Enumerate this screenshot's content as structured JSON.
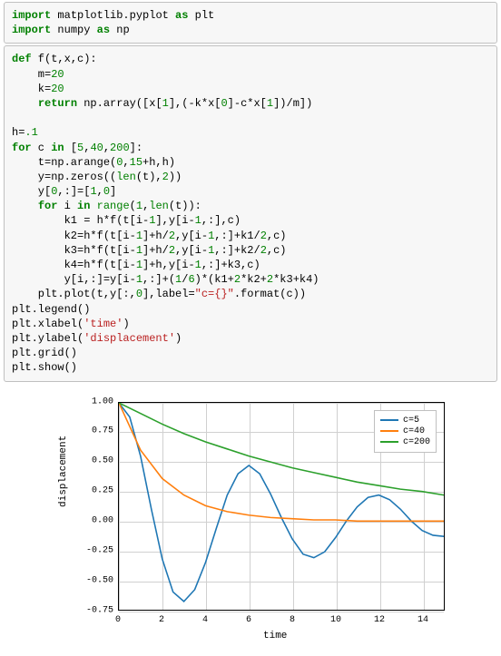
{
  "cell1": {
    "l1a": "import",
    "l1b": " matplotlib.pyplot ",
    "l1c": "as",
    "l1d": " plt",
    "l2a": "import",
    "l2b": " numpy ",
    "l2c": "as",
    "l2d": " np"
  },
  "cell2": {
    "l1a": "def",
    "l1b": " f(t,x,c):",
    "l2": "    m=",
    "l2n": "20",
    "l3": "    k=",
    "l3n": "20",
    "l4a": "    ",
    "l4b": "return",
    "l4c": " np.array([x[",
    "l4n1": "1",
    "l4d": "],(-k*x[",
    "l4n2": "0",
    "l4e": "]-c*x[",
    "l4n3": "1",
    "l4f": "])/m])",
    "l6a": "h=",
    "l6n": ".1",
    "l7a": "for",
    "l7b": " c ",
    "l7c": "in",
    "l7d": " [",
    "l7n1": "5",
    "l7e": ",",
    "l7n2": "40",
    "l7f": ",",
    "l7n3": "200",
    "l7g": "]:",
    "l8": "    t=np.arange(",
    "l8n1": "0",
    "l8a": ",",
    "l8n2": "15",
    "l8b": "+h,h)",
    "l9": "    y=np.zeros((",
    "l9a": "len",
    "l9b": "(t),",
    "l9n": "2",
    "l9c": "))",
    "l10": "    y[",
    "l10n1": "0",
    "l10a": ",:]=[",
    "l10n2": "1",
    "l10b": ",",
    "l10n3": "0",
    "l10c": "]",
    "l11a": "    ",
    "l11b": "for",
    "l11c": " i ",
    "l11d": "in",
    "l11e": " ",
    "l11f": "range",
    "l11g": "(",
    "l11n": "1",
    "l11h": ",",
    "l11i": "len",
    "l11j": "(t)):",
    "l12": "        k1 = h*f(t[i-",
    "l12n": "1",
    "l12a": "],y[i-",
    "l12n2": "1",
    "l12b": ",:],c)",
    "l13": "        k2=h*f(t[i-",
    "l13n": "1",
    "l13a": "]+h/",
    "l13n2": "2",
    "l13b": ",y[i-",
    "l13n3": "1",
    "l13c": ",:]+k1/",
    "l13n4": "2",
    "l13d": ",c)",
    "l14": "        k3=h*f(t[i-",
    "l14n": "1",
    "l14a": "]+h/",
    "l14n2": "2",
    "l14b": ",y[i-",
    "l14n3": "1",
    "l14c": ",:]+k2/",
    "l14n4": "2",
    "l14d": ",c)",
    "l15": "        k4=h*f(t[i-",
    "l15n": "1",
    "l15a": "]+h,y[i-",
    "l15n2": "1",
    "l15b": ",:]+k3,c)",
    "l16": "        y[i,:]=y[i-",
    "l16n": "1",
    "l16a": ",:]+(",
    "l16n2": "1",
    "l16b": "/",
    "l16n3": "6",
    "l16c": ")*(k1+",
    "l16n4": "2",
    "l16d": "*k2+",
    "l16n5": "2",
    "l16e": "*k3+k4)",
    "l17": "    plt.plot(t,y[:,",
    "l17n": "0",
    "l17a": "],label=",
    "l17s": "\"c={}\"",
    "l17b": ".format(c))",
    "l18": "plt.legend()",
    "l19": "plt.xlabel(",
    "l19s": "'time'",
    "l19a": ")",
    "l20": "plt.ylabel(",
    "l20s": "'displacement'",
    "l20a": ")",
    "l21": "plt.grid()",
    "l22": "plt.show()"
  },
  "chart": {
    "type": "line",
    "xlim": [
      0,
      15
    ],
    "ylim": [
      -0.75,
      1.0
    ],
    "xticks": [
      0,
      2,
      4,
      6,
      8,
      10,
      12,
      14
    ],
    "yticks": [
      -0.75,
      -0.5,
      -0.25,
      0.0,
      0.25,
      0.5,
      0.75,
      1.0
    ],
    "xlabel": "time",
    "ylabel": "displacement",
    "colors": {
      "c5": "#1f77b4",
      "c40": "#ff7f0e",
      "c200": "#2ca02c"
    },
    "legend": [
      {
        "label": "c=5",
        "color": "#1f77b4"
      },
      {
        "label": "c=40",
        "color": "#ff7f0e"
      },
      {
        "label": "c=200",
        "color": "#2ca02c"
      }
    ],
    "grid_color": "#d0d0d0",
    "background_color": "#ffffff",
    "line_width": 1.6,
    "series": {
      "c5_x": [
        0,
        0.5,
        1,
        1.5,
        2,
        2.5,
        3,
        3.5,
        4,
        4.5,
        5,
        5.5,
        6,
        6.5,
        7,
        7.5,
        8,
        8.5,
        9,
        9.5,
        10,
        10.5,
        11,
        11.5,
        12,
        12.5,
        13,
        13.5,
        14,
        14.5,
        15
      ],
      "c5_y": [
        1.0,
        0.88,
        0.55,
        0.1,
        -0.32,
        -0.6,
        -0.68,
        -0.58,
        -0.35,
        -0.06,
        0.22,
        0.4,
        0.47,
        0.4,
        0.23,
        0.03,
        -0.15,
        -0.28,
        -0.31,
        -0.26,
        -0.14,
        0.0,
        0.12,
        0.2,
        0.22,
        0.18,
        0.1,
        0.0,
        -0.08,
        -0.12,
        -0.13
      ],
      "c40_x": [
        0,
        1,
        2,
        3,
        4,
        5,
        6,
        7,
        8,
        9,
        10,
        11,
        12,
        13,
        14,
        15
      ],
      "c40_y": [
        1.0,
        0.6,
        0.36,
        0.22,
        0.13,
        0.08,
        0.05,
        0.03,
        0.02,
        0.01,
        0.01,
        0.0,
        0.0,
        0.0,
        0.0,
        0.0
      ],
      "c200_x": [
        0,
        1,
        2,
        3,
        4,
        5,
        6,
        7,
        8,
        9,
        10,
        11,
        12,
        13,
        14,
        15
      ],
      "c200_y": [
        1.0,
        0.91,
        0.82,
        0.74,
        0.67,
        0.61,
        0.55,
        0.5,
        0.45,
        0.41,
        0.37,
        0.33,
        0.3,
        0.27,
        0.25,
        0.22
      ]
    }
  }
}
